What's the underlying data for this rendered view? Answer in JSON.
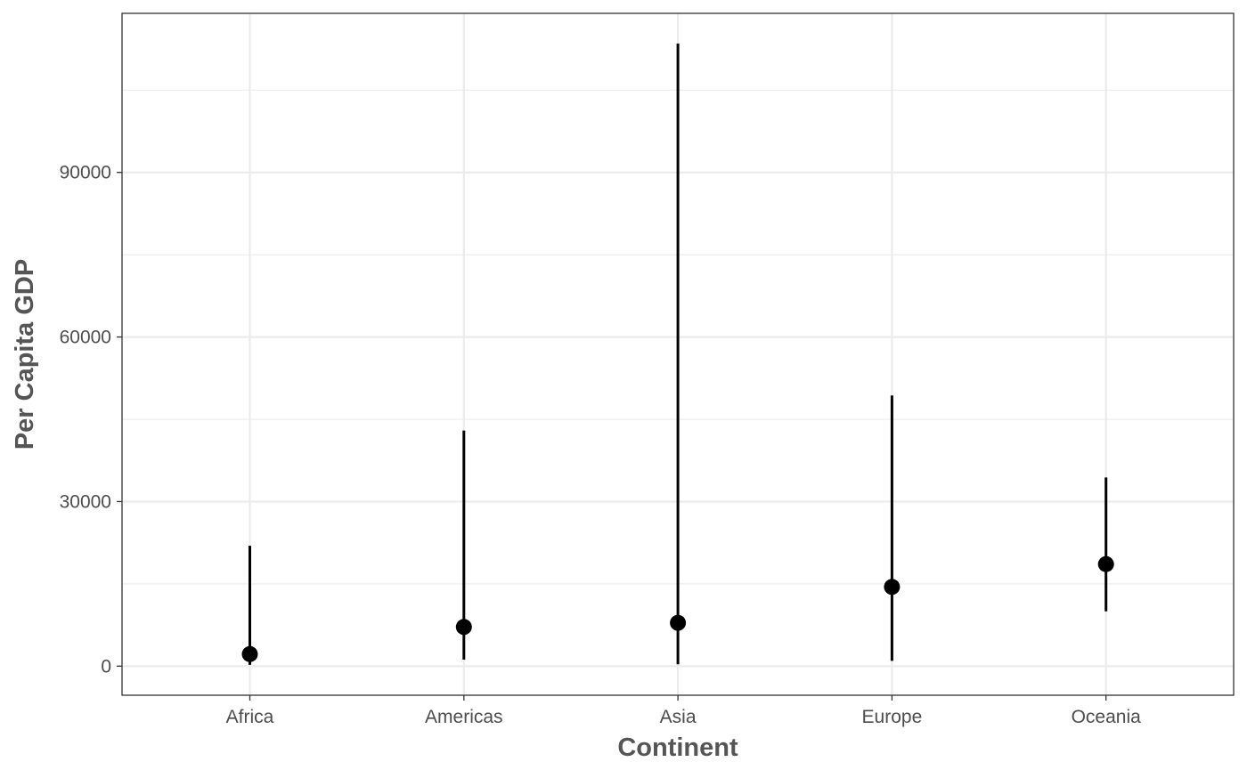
{
  "chart_data": {
    "type": "scatter",
    "title": "",
    "xlabel": "Continent",
    "ylabel": "Per Capita GDP",
    "categories": [
      "Africa",
      "Americas",
      "Asia",
      "Europe",
      "Oceania"
    ],
    "series": [
      {
        "points": [
          {
            "x": "Africa",
            "y": 2200,
            "min": 240,
            "max": 21950
          },
          {
            "x": "Americas",
            "y": 7150,
            "min": 1200,
            "max": 42950
          },
          {
            "x": "Asia",
            "y": 7900,
            "min": 330,
            "max": 113500
          },
          {
            "x": "Europe",
            "y": 14450,
            "min": 970,
            "max": 49350
          },
          {
            "x": "Oceania",
            "y": 18600,
            "min": 10000,
            "max": 34400
          }
        ]
      }
    ],
    "yticks": [
      0,
      30000,
      60000,
      90000
    ],
    "ytick_labels": [
      "0",
      "30000",
      "60000",
      "90000"
    ],
    "ylim": [
      -5300,
      119000
    ],
    "grid": true,
    "legend": "none",
    "colors": {
      "marks": "#000000",
      "grid": "#ebebeb",
      "panel_border": "#333333"
    }
  }
}
